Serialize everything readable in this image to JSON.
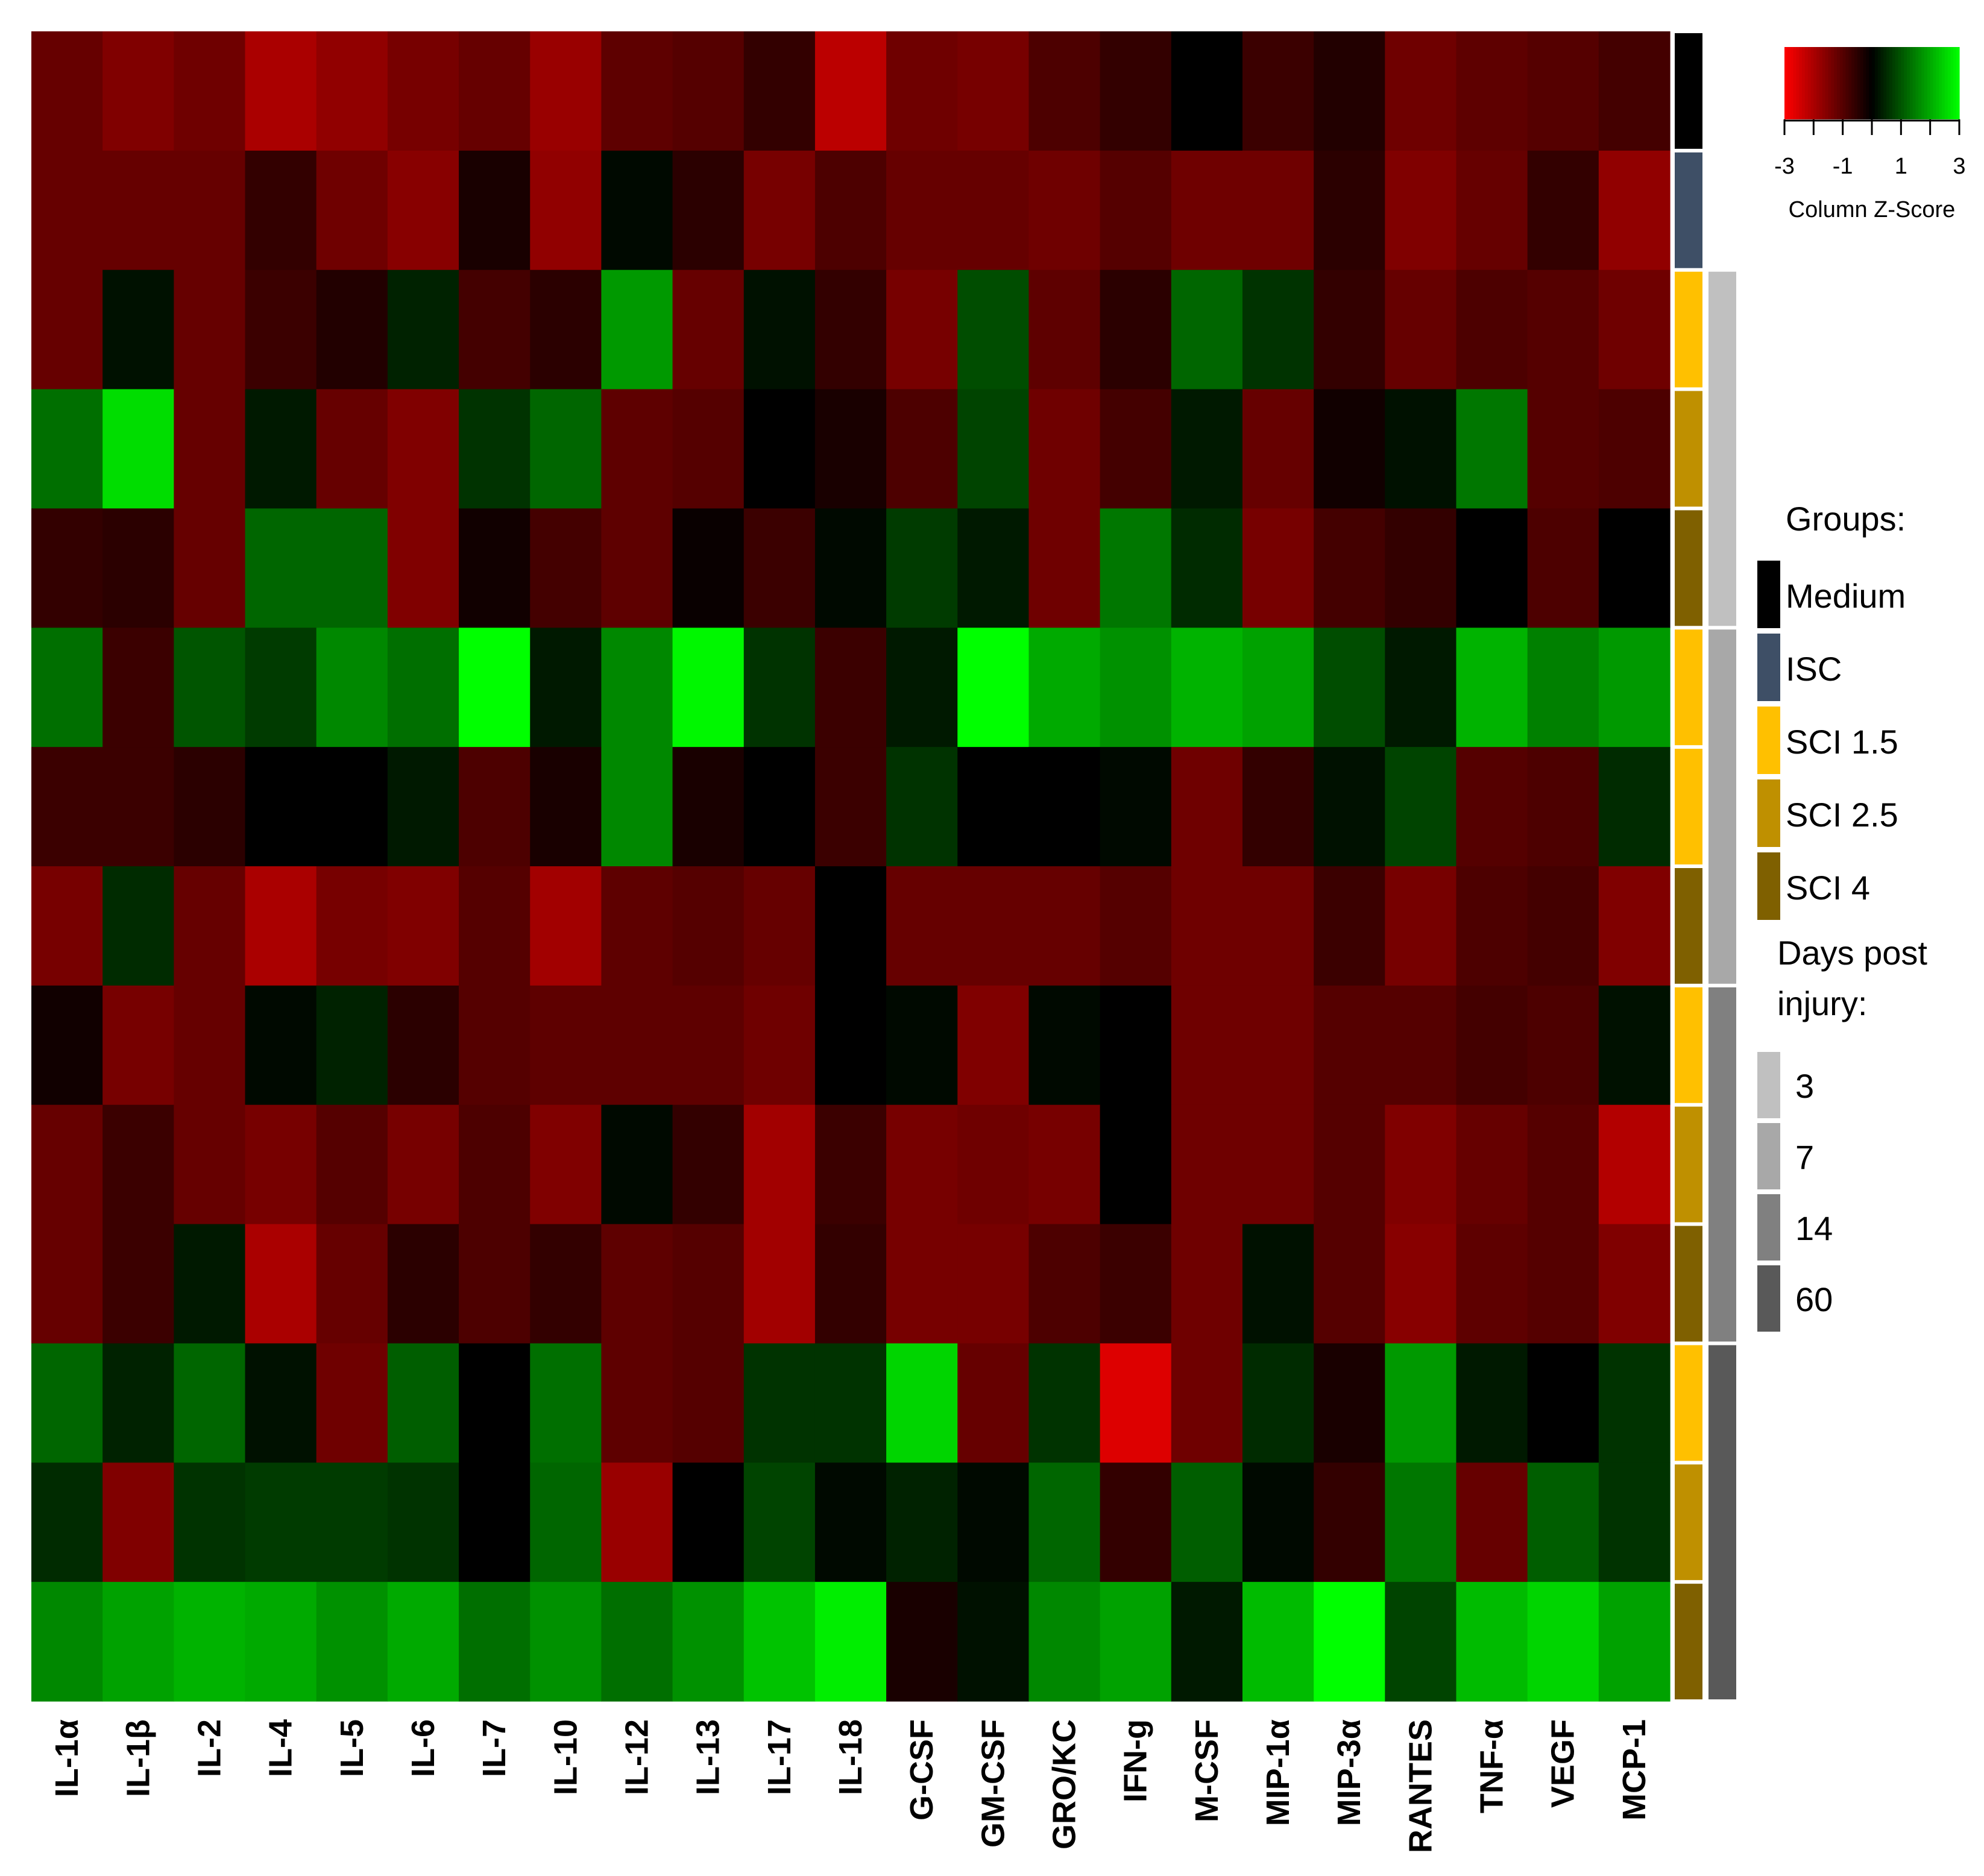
{
  "chart_data": {
    "type": "heatmap",
    "columns": [
      "IL-1α",
      "IL-1β",
      "IL-2",
      "IL-4",
      "IL-5",
      "IL-6",
      "IL-7",
      "IL-10",
      "IL-12",
      "IL-13",
      "IL-17",
      "IL-18",
      "G-CSF",
      "GM-CSF",
      "GRO/KC",
      "IFN-g",
      "M-CSF",
      "MIP-1α",
      "MIP-3α",
      "RANTES",
      "TNF-α",
      "VEGF",
      "MCP-1"
    ],
    "rows": [
      {
        "group": "Medium",
        "day": "",
        "values": [
          -1.2,
          -1.5,
          -1.3,
          -2.0,
          -1.7,
          -1.4,
          -1.2,
          -1.8,
          -1.1,
          -1.0,
          -0.6,
          -2.2,
          -1.3,
          -1.4,
          -0.9,
          -0.6,
          0.0,
          -0.7,
          -0.4,
          -1.3,
          -1.1,
          -1.0,
          -0.8
        ]
      },
      {
        "group": "ISC",
        "day": "",
        "values": [
          -1.2,
          -1.2,
          -1.2,
          -0.6,
          -1.3,
          -1.6,
          -0.3,
          -1.7,
          0.1,
          -0.5,
          -1.4,
          -0.9,
          -1.2,
          -1.2,
          -1.3,
          -1.0,
          -1.3,
          -1.3,
          -0.5,
          -1.5,
          -1.2,
          -0.6,
          -1.7
        ]
      },
      {
        "group": "SCI 1.5",
        "day": "3",
        "values": [
          -1.2,
          0.2,
          -1.2,
          -0.7,
          -0.4,
          0.4,
          -0.8,
          -0.5,
          1.8,
          -1.2,
          0.2,
          -0.6,
          -1.4,
          0.9,
          -1.1,
          -0.5,
          1.2,
          0.6,
          -0.6,
          -1.2,
          -0.9,
          -1.0,
          -1.3
        ]
      },
      {
        "group": "SCI 2.5",
        "day": "3",
        "values": [
          1.3,
          2.6,
          -1.2,
          0.3,
          -1.2,
          -1.5,
          0.6,
          1.2,
          -1.1,
          -1.0,
          0.0,
          -0.3,
          -0.9,
          0.8,
          -1.3,
          -0.8,
          0.3,
          -1.2,
          -0.2,
          0.2,
          1.4,
          -1.0,
          -0.9
        ]
      },
      {
        "group": "SCI 4",
        "day": "3",
        "values": [
          -0.6,
          -0.5,
          -1.2,
          1.2,
          1.2,
          -1.5,
          -0.2,
          -0.8,
          -1.1,
          -0.1,
          -0.7,
          0.1,
          0.7,
          0.3,
          -1.3,
          1.4,
          0.5,
          -1.4,
          -0.8,
          -0.6,
          0.0,
          -0.9,
          0.0
        ]
      },
      {
        "group": "SCI 1.5",
        "day": "7",
        "values": [
          1.3,
          -0.7,
          1.0,
          0.7,
          1.6,
          1.3,
          3.0,
          0.3,
          1.6,
          2.9,
          0.6,
          -0.7,
          0.3,
          3.0,
          2.0,
          1.7,
          2.1,
          1.9,
          0.9,
          0.3,
          2.1,
          1.5,
          1.8
        ]
      },
      {
        "group": "SCI 1.5",
        "day": "7",
        "values": [
          -0.7,
          -0.7,
          -0.5,
          0.0,
          0.0,
          0.3,
          -0.9,
          -0.3,
          1.6,
          -0.3,
          0.0,
          -0.7,
          0.6,
          0.0,
          0.0,
          0.1,
          -1.3,
          -0.6,
          0.2,
          0.8,
          -1.0,
          -0.9,
          0.5
        ]
      },
      {
        "group": "SCI 4",
        "day": "7",
        "values": [
          -1.4,
          0.5,
          -1.2,
          -2.0,
          -1.4,
          -1.5,
          -1.0,
          -1.9,
          -1.1,
          -1.0,
          -1.2,
          0.0,
          -1.2,
          -1.2,
          -1.2,
          -1.0,
          -1.3,
          -1.3,
          -0.7,
          -1.4,
          -0.9,
          -0.8,
          -1.5
        ]
      },
      {
        "group": "SCI 1.5",
        "day": "14",
        "values": [
          -0.2,
          -1.4,
          -1.2,
          0.1,
          0.4,
          -0.5,
          -1.0,
          -1.1,
          -1.1,
          -1.1,
          -1.3,
          0.0,
          0.1,
          -1.5,
          0.1,
          0.0,
          -1.3,
          -1.3,
          -1.0,
          -1.0,
          -0.8,
          -0.9,
          0.2
        ]
      },
      {
        "group": "SCI 2.5",
        "day": "14",
        "values": [
          -1.2,
          -0.7,
          -1.2,
          -1.4,
          -1.0,
          -1.4,
          -0.9,
          -1.5,
          0.1,
          -0.6,
          -1.9,
          -0.7,
          -1.4,
          -1.3,
          -1.4,
          0.0,
          -1.3,
          -1.3,
          -1.0,
          -1.5,
          -1.2,
          -1.0,
          -2.1
        ]
      },
      {
        "group": "SCI 4",
        "day": "14",
        "values": [
          -1.2,
          -0.7,
          0.3,
          -2.0,
          -1.2,
          -0.5,
          -0.9,
          -0.6,
          -1.1,
          -1.0,
          -1.9,
          -0.6,
          -1.4,
          -1.4,
          -0.9,
          -0.7,
          -1.3,
          0.2,
          -1.0,
          -1.6,
          -1.1,
          -1.0,
          -1.5
        ]
      },
      {
        "group": "SCI 1.5",
        "day": "60",
        "values": [
          1.2,
          0.4,
          1.2,
          0.2,
          -1.3,
          1.1,
          0.0,
          1.3,
          -1.1,
          -1.0,
          0.6,
          0.6,
          2.5,
          -1.2,
          0.6,
          -2.6,
          -1.3,
          0.5,
          -0.3,
          1.8,
          0.3,
          0.0,
          0.6
        ]
      },
      {
        "group": "SCI 2.5",
        "day": "60",
        "values": [
          0.5,
          -1.5,
          0.6,
          0.7,
          0.7,
          0.6,
          0.0,
          1.2,
          -1.8,
          0.0,
          0.8,
          0.1,
          0.4,
          0.1,
          1.2,
          -0.6,
          1.1,
          0.1,
          -0.6,
          1.4,
          -1.2,
          1.1,
          0.6
        ]
      },
      {
        "group": "SCI 4",
        "day": "60",
        "values": [
          1.6,
          1.9,
          2.1,
          2.0,
          1.7,
          2.0,
          1.3,
          1.7,
          1.3,
          1.7,
          2.3,
          2.8,
          -0.3,
          0.2,
          1.6,
          1.9,
          0.3,
          2.2,
          3.0,
          0.8,
          2.2,
          2.5,
          1.9
        ]
      }
    ],
    "color_scale": {
      "min": -3,
      "max": 3,
      "low": "#ff0000",
      "mid": "#000000",
      "high": "#00ff00",
      "ticks": [
        "-3",
        "-1",
        "1",
        "3"
      ],
      "label": "Column Z-Score"
    },
    "groups_legend": {
      "title": "Groups:",
      "items": [
        {
          "label": "Medium",
          "color": "#000000"
        },
        {
          "label": "ISC",
          "color": "#3e4f66"
        },
        {
          "label": "SCI 1.5",
          "color": "#ffc000"
        },
        {
          "label": "SCI 2.5",
          "color": "#bf9000"
        },
        {
          "label": "SCI 4",
          "color": "#7f6000"
        }
      ]
    },
    "days_legend": {
      "title": [
        "Days post",
        "injury:"
      ],
      "items": [
        {
          "label": "3",
          "color": "#c0c0c0"
        },
        {
          "label": "7",
          "color": "#a8a8a8"
        },
        {
          "label": "14",
          "color": "#808080"
        },
        {
          "label": "60",
          "color": "#595959"
        }
      ]
    }
  }
}
